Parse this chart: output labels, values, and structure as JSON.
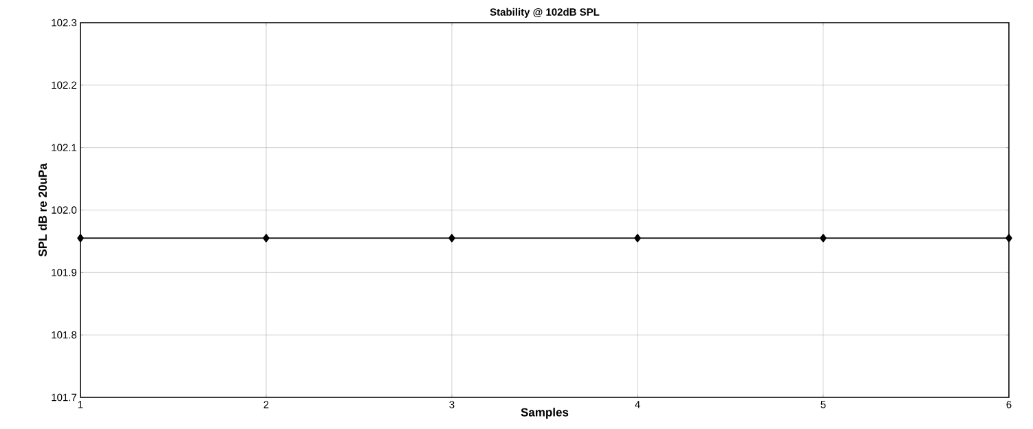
{
  "chart_data": {
    "type": "line",
    "title": "Stability @ 102dB SPL",
    "xlabel": "Samples",
    "ylabel": "SPL dB re 20uPa",
    "x": [
      1,
      2,
      3,
      4,
      5,
      6
    ],
    "series": [
      {
        "color": "#000000",
        "values": [
          101.955,
          101.955,
          101.955,
          101.955,
          101.955,
          101.955
        ]
      }
    ],
    "xlim": [
      1,
      6
    ],
    "ylim": [
      101.7,
      102.3
    ],
    "xticks": [
      1,
      2,
      3,
      4,
      5,
      6
    ],
    "yticks": [
      {
        "value": 101.7,
        "label": "101.7"
      },
      {
        "value": 101.8,
        "label": "101.8"
      },
      {
        "value": 101.9,
        "label": "101.9"
      },
      {
        "value": 102.0,
        "label": "102.0"
      },
      {
        "value": 102.1,
        "label": "102.1"
      },
      {
        "value": 102.2,
        "label": "102.2"
      },
      {
        "value": 102.3,
        "label": "102.3"
      }
    ],
    "grid": true,
    "marker": "diamond",
    "line_style": "solid"
  }
}
